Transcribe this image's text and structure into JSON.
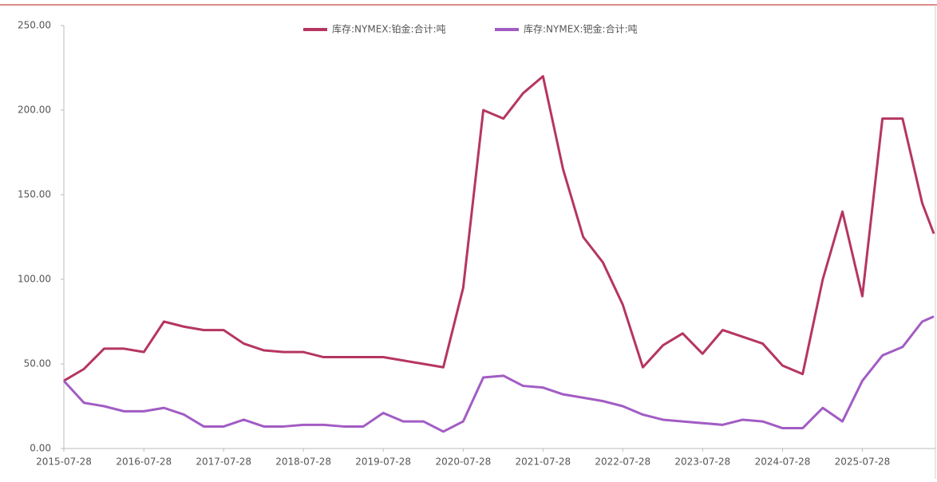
{
  "chart_data": {
    "type": "line",
    "x": [
      "2015-07-28",
      "2015-10-28",
      "2016-01-28",
      "2016-04-28",
      "2016-07-28",
      "2016-10-28",
      "2017-01-28",
      "2017-04-28",
      "2017-07-28",
      "2017-10-28",
      "2018-01-28",
      "2018-04-28",
      "2018-07-28",
      "2018-10-28",
      "2019-01-28",
      "2019-04-28",
      "2019-07-28",
      "2019-10-28",
      "2020-01-28",
      "2020-04-28",
      "2020-07-28",
      "2020-10-28",
      "2021-01-28",
      "2021-04-28",
      "2021-07-28",
      "2021-10-28",
      "2022-01-28",
      "2022-04-28",
      "2022-07-28",
      "2022-10-28",
      "2023-01-28",
      "2023-04-28",
      "2023-07-28",
      "2023-10-28",
      "2024-01-28",
      "2024-04-28",
      "2024-07-28",
      "2024-10-28",
      "2025-01-28",
      "2025-04-28",
      "2025-07-28",
      "2025-10-28",
      "2026-01-28",
      "2026-04-28",
      "2026-06-20"
    ],
    "series": [
      {
        "name": "库存:NYMEX:铂金:合计:吨",
        "color": "#b5365f",
        "values": [
          40,
          47,
          59,
          59,
          57,
          75,
          72,
          70,
          70,
          62,
          58,
          57,
          57,
          54,
          54,
          54,
          54,
          52,
          50,
          48,
          95,
          200,
          195,
          210,
          220,
          165,
          125,
          110,
          85,
          48,
          61,
          68,
          56,
          70,
          66,
          62,
          49,
          44,
          100,
          140,
          90,
          195,
          195,
          145,
          127
        ]
      },
      {
        "name": "库存:NYMEX:钯金:合计:吨",
        "color": "#a25cc4",
        "values": [
          40,
          27,
          25,
          22,
          22,
          24,
          20,
          13,
          13,
          17,
          13,
          13,
          14,
          14,
          13,
          13,
          21,
          16,
          16,
          10,
          16,
          42,
          43,
          37,
          36,
          32,
          30,
          28,
          25,
          20,
          17,
          16,
          15,
          14,
          17,
          16,
          12,
          12,
          24,
          16,
          40,
          55,
          60,
          75,
          78
        ]
      }
    ],
    "xlim": [
      "2015-07-28",
      "2026-06-20"
    ],
    "xticks": [
      "2015-07-28",
      "2016-07-28",
      "2017-07-28",
      "2018-07-28",
      "2019-07-28",
      "2020-07-28",
      "2021-07-28",
      "2022-07-28",
      "2023-07-28",
      "2024-07-28",
      "2025-07-28"
    ],
    "ylim": [
      0,
      250
    ],
    "yticks": [
      {
        "value": 0,
        "label": "0.00"
      },
      {
        "value": 50,
        "label": "50.00"
      },
      {
        "value": 100,
        "label": "100.00"
      },
      {
        "value": 150,
        "label": "150.00"
      },
      {
        "value": 200,
        "label": "200.00"
      },
      {
        "value": 250,
        "label": "250.00"
      }
    ]
  }
}
